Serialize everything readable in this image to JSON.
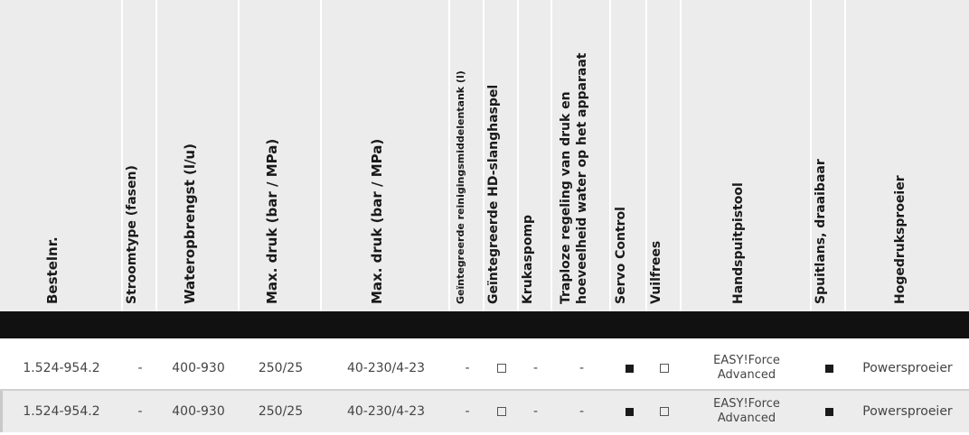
{
  "columns": [
    "Bestelnr.",
    "Stroomtype (fasen)",
    "Wateropbrengst (l/u)",
    "Max. druk (bar / MPa)",
    "Max. druk (bar / MPa)",
    "Geïntegreerde reinigingsmiddelentank (l)",
    "Geïntegreerde HD-slanghaspel",
    "Krukaspomp",
    "Traploze regeling van druk en",
    "hoeveelheid water op het apparaat",
    "Servo Control",
    "Vuilfrees",
    "Handspuitpistool",
    "Spuitlans, draaibaar",
    "Hogedruksproeier"
  ],
  "rows": [
    {
      "bestelnr": "1.524-954.2",
      "stroomtype": "-",
      "wateropbrengst": "400-930",
      "max_druk_1": "250/25",
      "max_druk_2": "40-230/4-23",
      "reinigingstank": "-",
      "slanghaspel": "empty-square",
      "krukaspomp": "-",
      "traploze_regeling": "-",
      "servo_control": "filled-square",
      "vuilfrees": "empty-square",
      "handspuitpistool": "EASY!Force Advanced",
      "spuitlans": "filled-square",
      "hogedruksproeier": "Powersproeier"
    },
    {
      "bestelnr": "1.524-954.2",
      "stroomtype": "-",
      "wateropbrengst": "400-930",
      "max_druk_1": "250/25",
      "max_druk_2": "40-230/4-23",
      "reinigingstank": "-",
      "slanghaspel": "empty-square",
      "krukaspomp": "-",
      "traploze_regeling": "-",
      "servo_control": "filled-square",
      "vuilfrees": "empty-square",
      "handspuitpistool": "EASY!Force Advanced",
      "spuitlans": "filled-square",
      "hogedruksproeier": "Powersproeier"
    }
  ]
}
